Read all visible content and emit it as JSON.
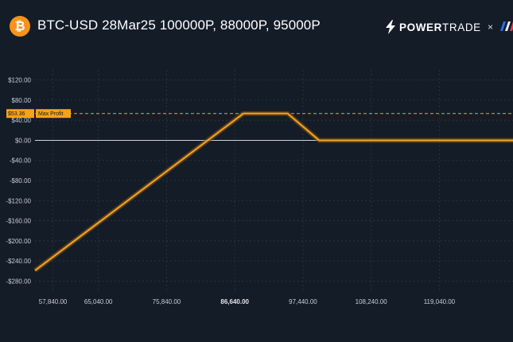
{
  "header": {
    "title": "BTC-USD 28Mar25 100000P, 88000P, 95000P",
    "coin_icon": "bitcoin-icon",
    "brand": {
      "part1": "POWER",
      "part2": "TRADE",
      "icon": "lightning-bolt-icon"
    },
    "times_symbol": "×",
    "partner_icon": "partner-logo-icon"
  },
  "colors": {
    "background": "#141c28",
    "payoff_line": "#f0a020",
    "zero_line": "#e8ecf0",
    "max_profit": "#f7a21b",
    "grid": "#2c3848"
  },
  "chart_data": {
    "type": "line",
    "xlim": [
      55000,
      130700
    ],
    "ylim": [
      -300,
      140
    ],
    "grid": true,
    "x_ticks": [
      57840,
      65040,
      75840,
      86640,
      97440,
      108240,
      119040
    ],
    "x_tick_labels": [
      "57,840.00",
      "65,040.00",
      "75,840.00",
      "86,640.00",
      "97,440.00",
      "108,240.00",
      "119,040.00"
    ],
    "x_tick_highlight": "86,640.00",
    "y_ticks": [
      120,
      80,
      40,
      0,
      -40,
      -80,
      -120,
      -160,
      -200,
      -240,
      -280
    ],
    "y_tick_labels": [
      "$120.00",
      "$80.00",
      "$40.00",
      "$0.00",
      "-$40.00",
      "-$80.00",
      "-$120.00",
      "-$160.00",
      "-$200.00",
      "-$240.00",
      "-$280.00"
    ],
    "series": [
      {
        "x": [
          55000,
          88000,
          95000,
          100000,
          130700
        ],
        "y": [
          -259,
          53.36,
          53.36,
          0,
          0
        ]
      }
    ],
    "max_profit": {
      "value": 53.36,
      "value_label": "$53.36",
      "label": "Max Profit"
    }
  }
}
